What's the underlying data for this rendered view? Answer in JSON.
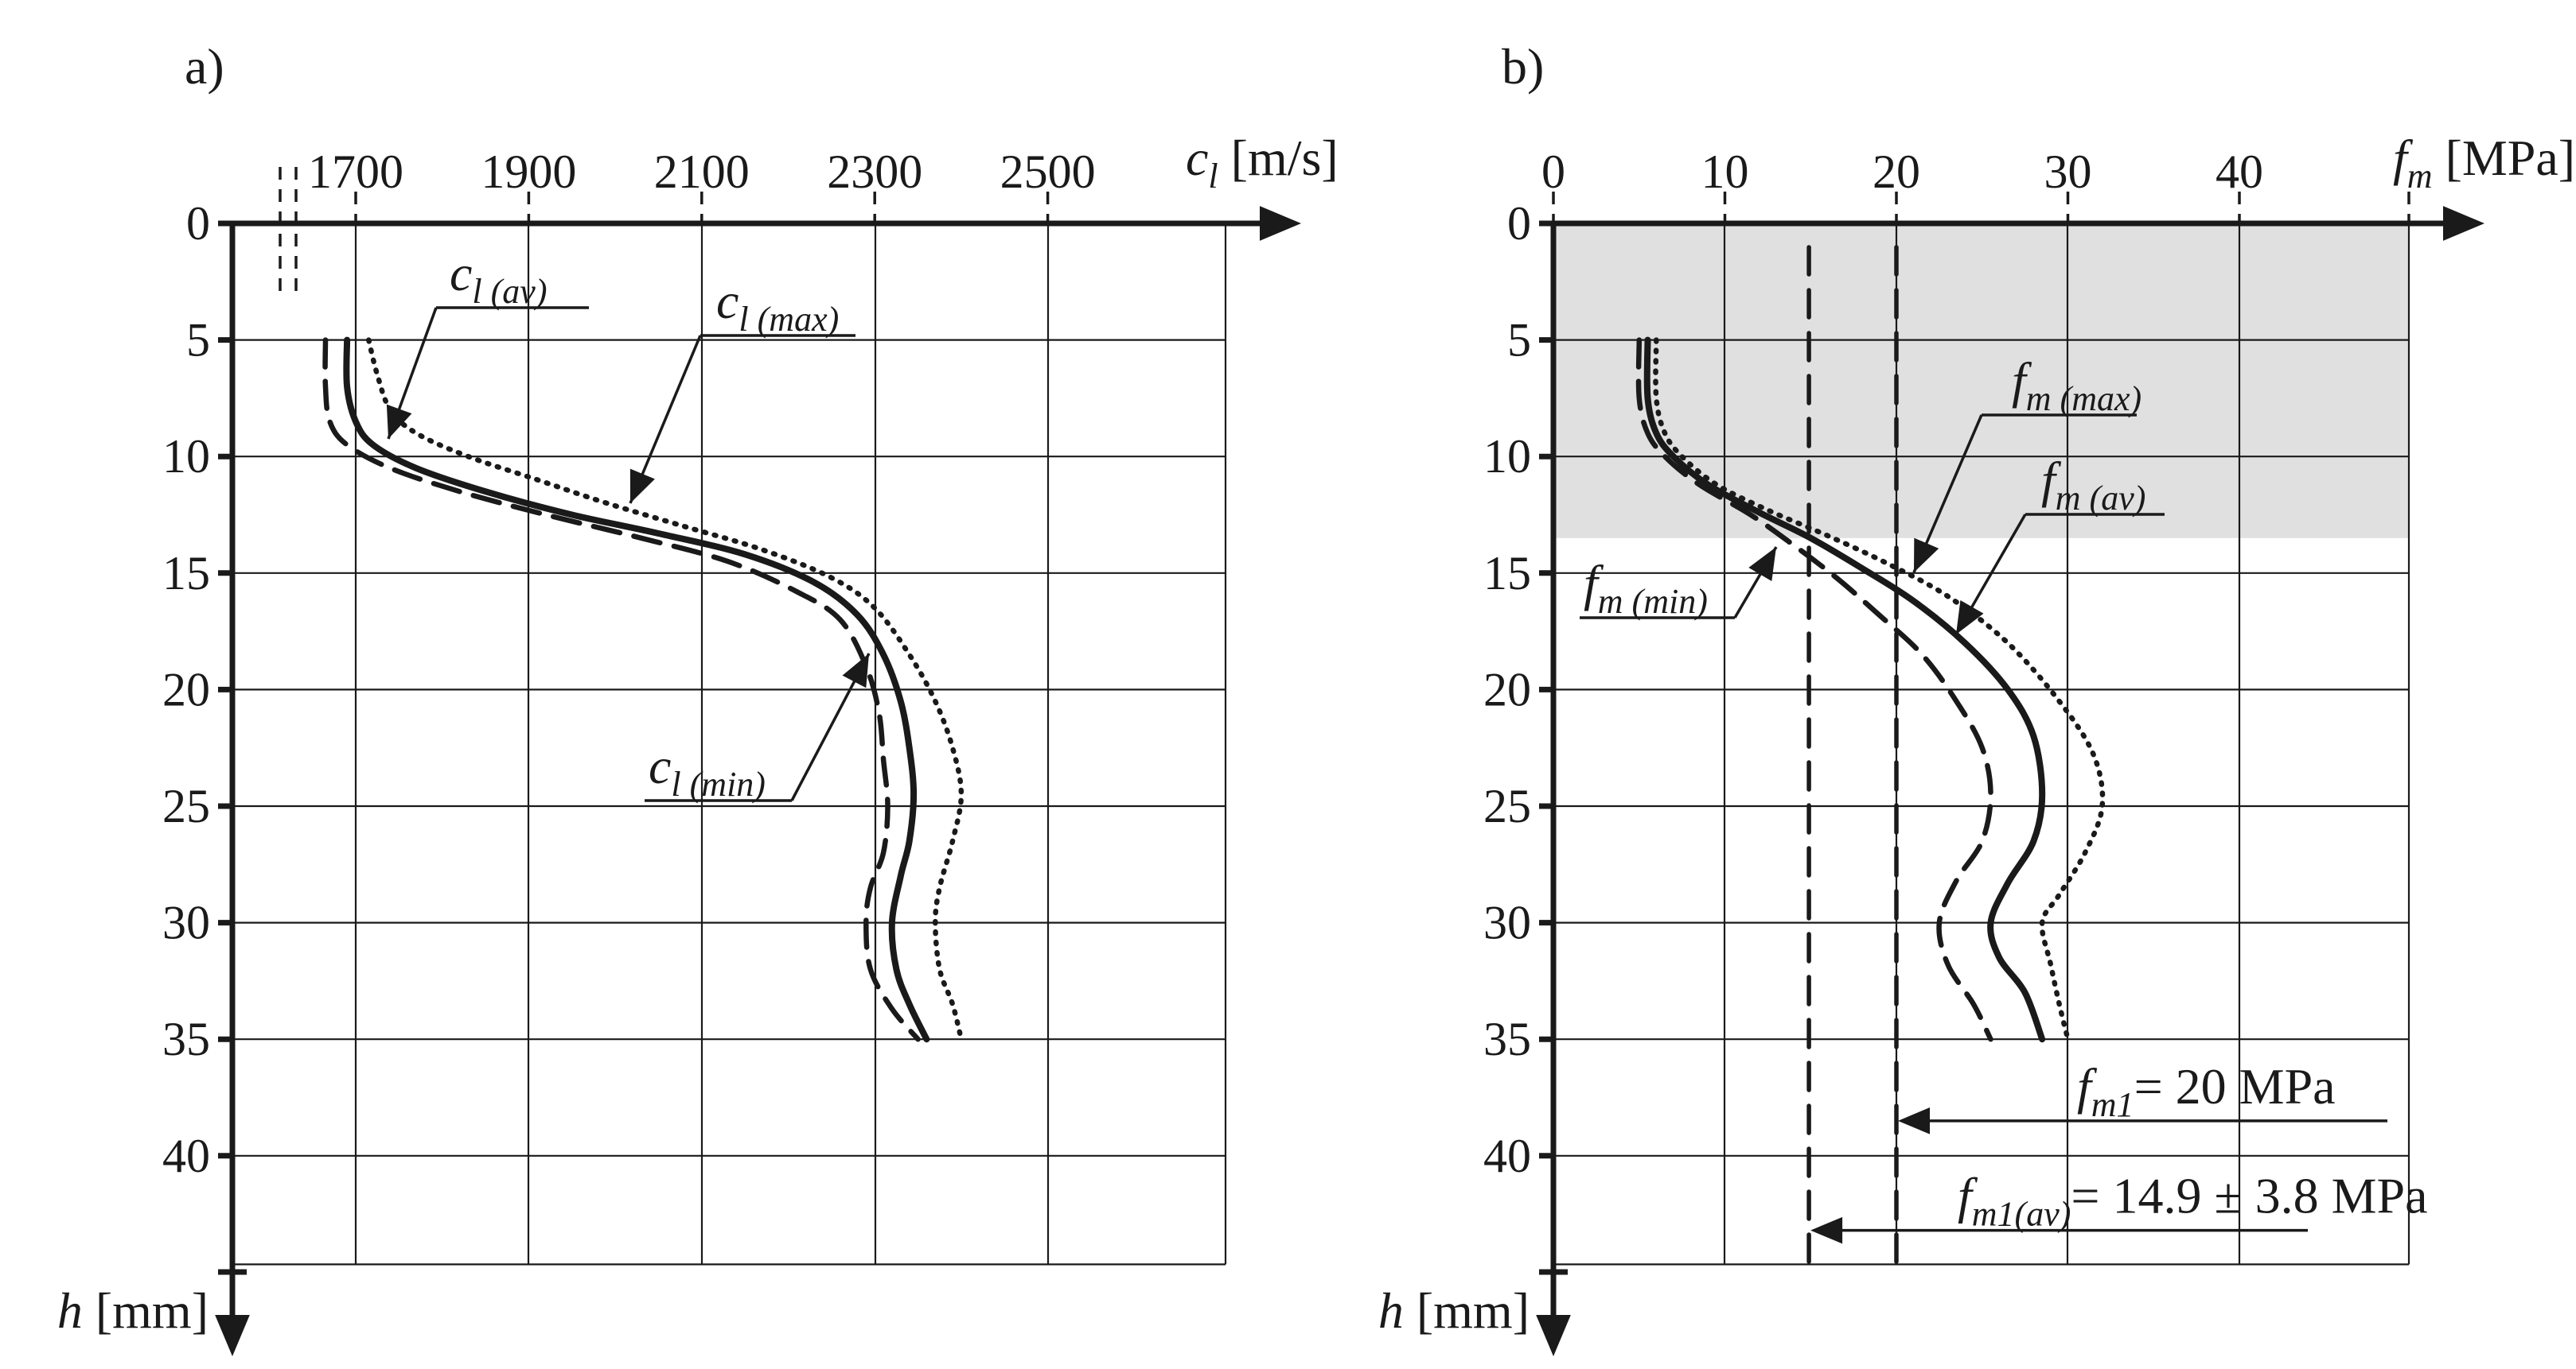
{
  "panels": {
    "a": {
      "label": "a)"
    },
    "b": {
      "label": "b)"
    }
  },
  "shade_color": "#e0e0e0",
  "chart_data": [
    {
      "type": "line",
      "panel": "a)",
      "xlabel_symbol": "c",
      "xlabel_sub": "l",
      "xlabel_unit": "[m/s]",
      "ylabel_symbol": "h",
      "ylabel_unit": "[mm]",
      "x_ticks": [
        1700,
        1900,
        2100,
        2300,
        2500
      ],
      "y_ticks": [
        0,
        5,
        10,
        15,
        20,
        25,
        30,
        35,
        40
      ],
      "xlim": [
        1700,
        2500
      ],
      "ylim": [
        0,
        45
      ],
      "y_inverted": true,
      "axis_break": true,
      "grid": true,
      "series": [
        {
          "name_symbol": "c",
          "name_sub_outer": "l",
          "name_sub": "(av)",
          "style": "solid",
          "points": [
            [
              1690,
              5
            ],
            [
              1690,
              7
            ],
            [
              1700,
              8.5
            ],
            [
              1720,
              9.5
            ],
            [
              1770,
              10.5
            ],
            [
              1850,
              11.5
            ],
            [
              1950,
              12.5
            ],
            [
              2050,
              13.3
            ],
            [
              2150,
              14.2
            ],
            [
              2230,
              15.4
            ],
            [
              2280,
              16.8
            ],
            [
              2310,
              18.5
            ],
            [
              2330,
              20.5
            ],
            [
              2340,
              22.5
            ],
            [
              2345,
              24.5
            ],
            [
              2340,
              26.5
            ],
            [
              2330,
              28
            ],
            [
              2320,
              30
            ],
            [
              2325,
              32
            ],
            [
              2340,
              33.5
            ],
            [
              2360,
              35
            ]
          ]
        },
        {
          "name_symbol": "c",
          "name_sub_outer": "l",
          "name_sub": "(max)",
          "style": "dotted",
          "points": [
            [
              1715,
              5
            ],
            [
              1725,
              6.5
            ],
            [
              1740,
              8
            ],
            [
              1770,
              9
            ],
            [
              1830,
              10
            ],
            [
              1910,
              11
            ],
            [
              1990,
              12
            ],
            [
              2080,
              13
            ],
            [
              2170,
              14
            ],
            [
              2250,
              15.2
            ],
            [
              2300,
              16.5
            ],
            [
              2340,
              18.5
            ],
            [
              2370,
              20.5
            ],
            [
              2390,
              22.5
            ],
            [
              2400,
              24.5
            ],
            [
              2390,
              26.5
            ],
            [
              2375,
              28.5
            ],
            [
              2370,
              30
            ],
            [
              2375,
              32
            ],
            [
              2390,
              33.5
            ],
            [
              2400,
              35
            ]
          ]
        },
        {
          "name_symbol": "c",
          "name_sub_outer": "l",
          "name_sub": "(min)",
          "style": "dashed",
          "points": [
            [
              1665,
              5
            ],
            [
              1665,
              7
            ],
            [
              1670,
              8.5
            ],
            [
              1690,
              9.5
            ],
            [
              1740,
              10.5
            ],
            [
              1820,
              11.5
            ],
            [
              1920,
              12.5
            ],
            [
              2030,
              13.5
            ],
            [
              2130,
              14.5
            ],
            [
              2210,
              15.8
            ],
            [
              2260,
              17
            ],
            [
              2290,
              19
            ],
            [
              2305,
              21
            ],
            [
              2310,
              23
            ],
            [
              2315,
              25
            ],
            [
              2310,
              27
            ],
            [
              2295,
              28.5
            ],
            [
              2290,
              30
            ],
            [
              2295,
              32
            ],
            [
              2320,
              33.7
            ],
            [
              2350,
              35
            ]
          ]
        }
      ],
      "annotations": []
    },
    {
      "type": "line",
      "panel": "b)",
      "xlabel_symbol": "f",
      "xlabel_sub": "m",
      "xlabel_unit": "[MPa]",
      "ylabel_symbol": "h",
      "ylabel_unit": "[mm]",
      "x_ticks": [
        0,
        10,
        20,
        30,
        40
      ],
      "y_ticks": [
        0,
        5,
        10,
        15,
        20,
        25,
        30,
        35,
        40
      ],
      "xlim": [
        0,
        50
      ],
      "ylim": [
        0,
        45
      ],
      "y_inverted": true,
      "grid": true,
      "shaded_region": {
        "x": [
          0,
          50
        ],
        "y": [
          0,
          13.5
        ]
      },
      "vlines": [
        {
          "x": 20,
          "label_symbol": "f",
          "label_sub": "m1",
          "label_text": "= 20 MPa",
          "label_y": 38.5
        },
        {
          "x": 14.9,
          "label_symbol": "f",
          "label_sub": "m1(av)",
          "label_text": "= 14.9 ± 3.8 MPa",
          "label_y": 43.2
        }
      ],
      "series": [
        {
          "name_symbol": "f",
          "name_sub": "m (av)",
          "style": "solid",
          "points": [
            [
              5.5,
              5
            ],
            [
              5.5,
              7.5
            ],
            [
              6,
              9
            ],
            [
              7,
              10
            ],
            [
              9,
              11.2
            ],
            [
              12,
              12.4
            ],
            [
              15,
              13.5
            ],
            [
              18,
              14.8
            ],
            [
              21,
              16.2
            ],
            [
              24,
              18
            ],
            [
              26.5,
              20
            ],
            [
              28,
              22
            ],
            [
              28.5,
              24.5
            ],
            [
              28,
              26.5
            ],
            [
              26.5,
              28.3
            ],
            [
              25.5,
              30
            ],
            [
              26,
              31.5
            ],
            [
              27.5,
              33
            ],
            [
              28.5,
              35
            ]
          ]
        },
        {
          "name_symbol": "f",
          "name_sub": "m (max)",
          "style": "dotted",
          "points": [
            [
              6,
              5
            ],
            [
              6,
              7.5
            ],
            [
              6.5,
              9
            ],
            [
              7.5,
              10
            ],
            [
              9.5,
              11.2
            ],
            [
              12.5,
              12.3
            ],
            [
              16,
              13.4
            ],
            [
              19.5,
              14.6
            ],
            [
              23,
              16
            ],
            [
              26.5,
              18
            ],
            [
              29.5,
              20.5
            ],
            [
              31.5,
              22.8
            ],
            [
              32,
              25
            ],
            [
              31,
              27
            ],
            [
              29.5,
              28.8
            ],
            [
              28.5,
              30
            ],
            [
              29,
              31.8
            ],
            [
              29.5,
              33.5
            ],
            [
              30,
              35
            ]
          ]
        },
        {
          "name_symbol": "f",
          "name_sub": "m (min)",
          "style": "dashed",
          "points": [
            [
              5,
              5
            ],
            [
              5,
              7.5
            ],
            [
              5.5,
              9
            ],
            [
              6.5,
              10
            ],
            [
              8.5,
              11.2
            ],
            [
              11.5,
              12.5
            ],
            [
              14,
              13.8
            ],
            [
              16.5,
              15.2
            ],
            [
              19,
              16.8
            ],
            [
              21.5,
              18.5
            ],
            [
              23.5,
              20.5
            ],
            [
              25,
              22.5
            ],
            [
              25.5,
              24.5
            ],
            [
              25,
              26.5
            ],
            [
              23.5,
              28.2
            ],
            [
              22.5,
              30
            ],
            [
              23,
              31.8
            ],
            [
              24.5,
              33.5
            ],
            [
              25.5,
              35
            ]
          ]
        }
      ]
    }
  ]
}
